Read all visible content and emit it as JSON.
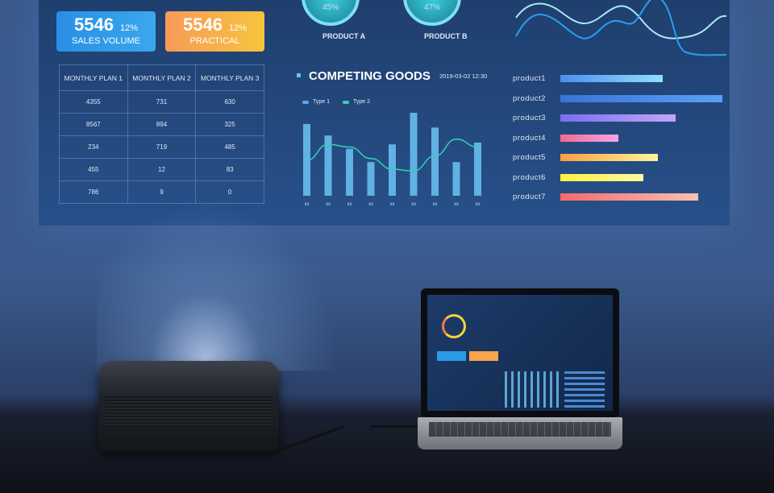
{
  "kpi_cards": [
    {
      "value": "5546",
      "percent": "12%",
      "label": "SALES VOLUME",
      "color": "#2d9ae8"
    },
    {
      "value": "5546",
      "percent": "12%",
      "label": "PRACTICAL",
      "color": "#f7a44c"
    }
  ],
  "table": {
    "headers": [
      "MONTHLY PLAN 1",
      "MONTHLY PLAN 2",
      "MONTHLY PLAN 3"
    ],
    "rows": [
      [
        "4355",
        "731",
        "630"
      ],
      [
        "8567",
        "894",
        "325"
      ],
      [
        "234",
        "719",
        "485"
      ],
      [
        "455",
        "12",
        "83"
      ],
      [
        "786",
        "9",
        "0"
      ]
    ]
  },
  "gauges": [
    {
      "value": "45%",
      "label": "PRODUCT A"
    },
    {
      "value": "47%",
      "label": "PRODUCT B"
    }
  ],
  "competing": {
    "title": "COMPETING GOODS",
    "datetime": "2019-03-02  12:30",
    "legend": [
      "Type 1",
      "Type 2"
    ]
  },
  "chart_data": [
    {
      "type": "bar",
      "title": "COMPETING GOODS",
      "categories": [
        "xx",
        "xx",
        "xx",
        "xx",
        "xx",
        "xx",
        "xx",
        "xx",
        "xx"
      ],
      "series": [
        {
          "name": "Type 1",
          "values": [
            81,
            68,
            53,
            38,
            58,
            95,
            77,
            38,
            60
          ],
          "color": "#6cc3f3"
        },
        {
          "name": "Type 2",
          "type": "line",
          "values": [
            40,
            58,
            55,
            42,
            30,
            28,
            45,
            64,
            55
          ],
          "color": "#2fd6b0"
        }
      ]
    },
    {
      "type": "bar",
      "orientation": "horizontal",
      "categories": [
        "product1",
        "product2",
        "product3",
        "product4",
        "product5",
        "product6",
        "product7"
      ],
      "values": [
        0.63,
        1.0,
        0.71,
        0.36,
        0.6,
        0.51,
        0.85
      ],
      "colors": [
        [
          "#4a8ff0",
          "#8fe0f8"
        ],
        [
          "#3a72d8",
          "#5aa0f5"
        ],
        [
          "#7a6ef0",
          "#c0a6f6"
        ],
        [
          "#f06a8e",
          "#f7a6e6"
        ],
        [
          "#f7a040",
          "#fff59a"
        ],
        [
          "#fff040",
          "#fff8a0"
        ],
        [
          "#f46a6a",
          "#f9c0b0"
        ]
      ]
    }
  ]
}
